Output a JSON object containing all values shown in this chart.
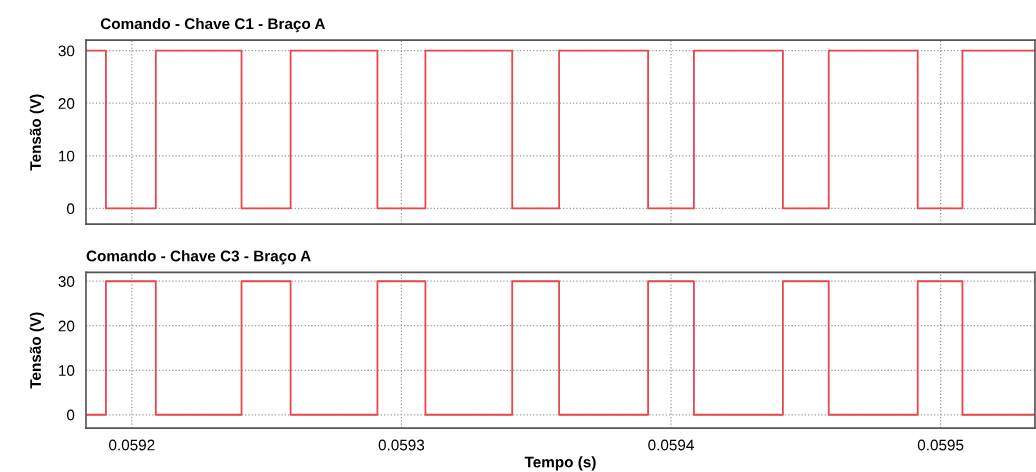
{
  "chart_data": [
    {
      "type": "step",
      "title": "Comando - Chave C1 - Braço A",
      "ylabel": "Tensão (V)",
      "xlim": [
        0.059183,
        0.059535
      ],
      "xticks": [
        0.0592,
        0.0593,
        0.0594,
        0.0595
      ],
      "ylim": [
        -3,
        32
      ],
      "yticks": [
        0,
        10,
        20,
        30
      ],
      "grid": true,
      "tick_labels": "y",
      "series": [
        {
          "color": "#e8474c",
          "x": [
            0.059183,
            0.0591904,
            0.0592089,
            0.0592407,
            0.0592589,
            0.0592911,
            0.0593089,
            0.0593411,
            0.0593585,
            0.0593915,
            0.0594085,
            0.0594415,
            0.0594585,
            0.0594915,
            0.0595081,
            0.059535
          ],
          "values": [
            30,
            0,
            30,
            0,
            30,
            0,
            30,
            0,
            30,
            0,
            30,
            0,
            30,
            0,
            30,
            30
          ]
        }
      ]
    },
    {
      "type": "step",
      "title": "Comando - Chave C3 - Braço A",
      "ylabel": "Tensão (V)",
      "xlabel": "Tempo (s)",
      "xlim": [
        0.059183,
        0.059535
      ],
      "xticks": [
        0.0592,
        0.0593,
        0.0594,
        0.0595
      ],
      "ylim": [
        -3,
        32
      ],
      "yticks": [
        0,
        10,
        20,
        30
      ],
      "grid": true,
      "series": [
        {
          "color": "#e8474c",
          "x": [
            0.059183,
            0.0591904,
            0.0592089,
            0.0592407,
            0.0592589,
            0.0592911,
            0.0593089,
            0.0593411,
            0.0593585,
            0.0593915,
            0.0594085,
            0.0594415,
            0.0594585,
            0.0594915,
            0.0595081,
            0.059535
          ],
          "values": [
            0,
            30,
            0,
            30,
            0,
            30,
            0,
            30,
            0,
            30,
            0,
            30,
            0,
            30,
            0,
            0
          ]
        }
      ]
    }
  ]
}
